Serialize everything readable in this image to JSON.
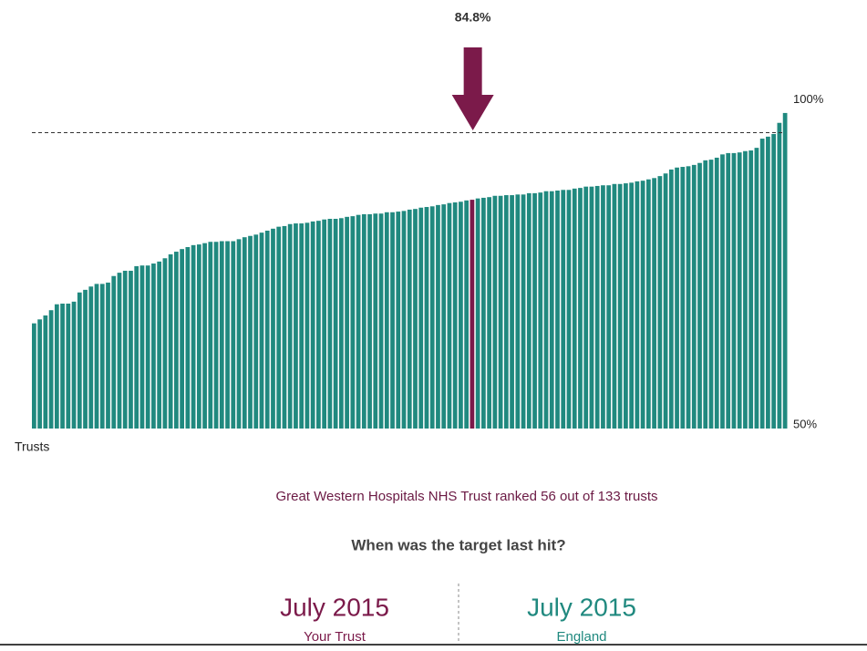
{
  "chart_data": {
    "type": "bar",
    "x_label": "Trusts",
    "values": [
      66.0,
      66.6,
      67.2,
      68.0,
      68.9,
      69.0,
      69.0,
      69.3,
      70.7,
      71.1,
      71.6,
      72.0,
      72.0,
      72.2,
      73.2,
      73.7,
      74.0,
      74.0,
      74.7,
      74.8,
      74.8,
      75.1,
      75.4,
      75.9,
      76.5,
      76.9,
      77.3,
      77.6,
      77.9,
      78.0,
      78.2,
      78.4,
      78.4,
      78.5,
      78.5,
      78.5,
      78.8,
      79.1,
      79.3,
      79.5,
      79.8,
      80.1,
      80.4,
      80.7,
      80.8,
      81.1,
      81.2,
      81.2,
      81.3,
      81.5,
      81.6,
      81.8,
      81.9,
      81.9,
      82.0,
      82.2,
      82.3,
      82.5,
      82.6,
      82.6,
      82.7,
      82.7,
      82.9,
      82.9,
      83.0,
      83.1,
      83.3,
      83.4,
      83.6,
      83.7,
      83.8,
      84.0,
      84.1,
      84.3,
      84.4,
      84.5,
      84.7,
      84.8,
      85.0,
      85.1,
      85.2,
      85.4,
      85.4,
      85.5,
      85.5,
      85.6,
      85.6,
      85.8,
      85.8,
      85.9,
      86.1,
      86.1,
      86.2,
      86.3,
      86.3,
      86.5,
      86.6,
      86.8,
      86.8,
      86.9,
      87.0,
      87.0,
      87.2,
      87.2,
      87.3,
      87.4,
      87.6,
      87.7,
      87.9,
      88.1,
      88.4,
      88.8,
      89.4,
      89.7,
      89.8,
      89.9,
      90.1,
      90.4,
      90.8,
      90.9,
      91.2,
      91.7,
      91.9,
      91.9,
      92.0,
      92.2,
      92.3,
      92.7,
      94.1,
      94.4,
      94.8,
      96.5,
      98.0
    ],
    "color": "#20897f",
    "highlight": {
      "index": 77,
      "label": "84.8%",
      "color": "#7b1a4a"
    },
    "reference_line": 95,
    "ylim": [
      50,
      100
    ],
    "yticks": [
      {
        "value": 50,
        "label": "50%"
      },
      {
        "value": 100,
        "label": "100%"
      }
    ]
  },
  "caption": "Great Western Hospitals NHS Trust ranked 56 out of 133 trusts",
  "question": "When was the target last hit?",
  "panels": [
    {
      "date": "July 2015",
      "label": "Your Trust",
      "color": "#7b1a4a"
    },
    {
      "date": "July 2015",
      "label": "England",
      "color": "#20897f"
    }
  ]
}
